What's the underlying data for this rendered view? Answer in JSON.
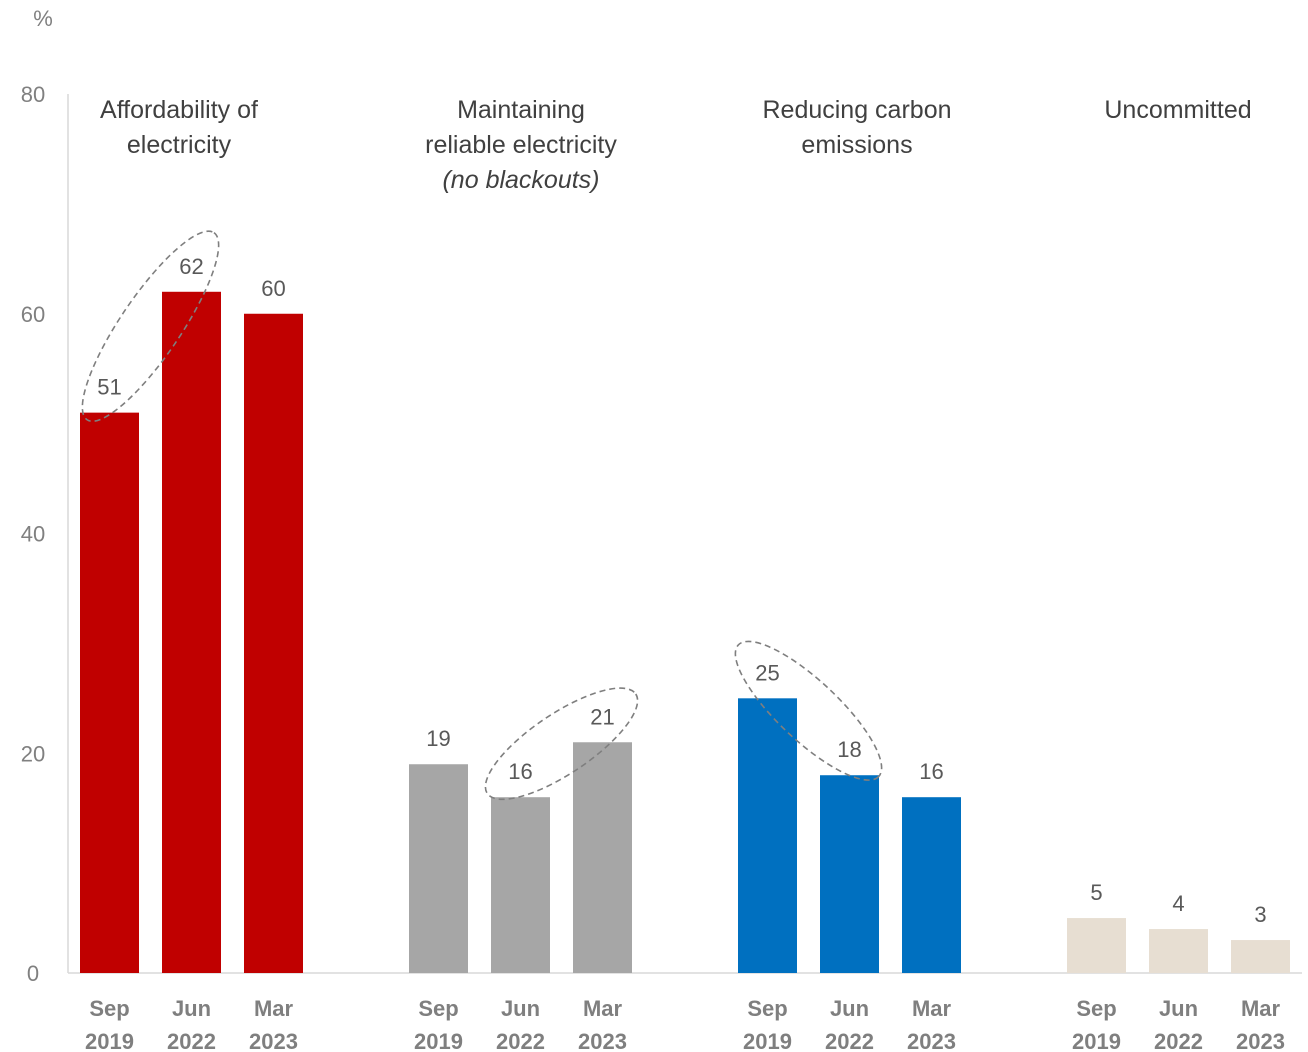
{
  "chart_data": {
    "type": "bar",
    "unit_label": "%",
    "ylim": [
      0,
      80
    ],
    "yticks": [
      0,
      20,
      40,
      60,
      80
    ],
    "grid": false,
    "categories": [
      [
        "Sep",
        "2019"
      ],
      [
        "Jun",
        "2022"
      ],
      [
        "Mar",
        "2023"
      ]
    ],
    "groups": [
      {
        "title_lines": [
          "Affordability of",
          "electricity"
        ],
        "subtitle": "",
        "color": "#c00000",
        "values": [
          51,
          62,
          60
        ]
      },
      {
        "title_lines": [
          "Maintaining",
          "reliable electricity"
        ],
        "subtitle": "(no blackouts)",
        "color": "#a6a6a6",
        "values": [
          19,
          16,
          21
        ]
      },
      {
        "title_lines": [
          "Reducing carbon",
          "emissions"
        ],
        "subtitle": "",
        "color": "#0070c0",
        "values": [
          25,
          18,
          16
        ]
      },
      {
        "title_lines": [
          "Uncommitted"
        ],
        "subtitle": "",
        "color": "#e7ded2",
        "values": [
          5,
          4,
          3
        ]
      }
    ],
    "highlights": [
      {
        "group": 0,
        "from": 0,
        "to": 1
      },
      {
        "group": 1,
        "from": 1,
        "to": 2
      },
      {
        "group": 2,
        "from": 0,
        "to": 1
      }
    ]
  }
}
